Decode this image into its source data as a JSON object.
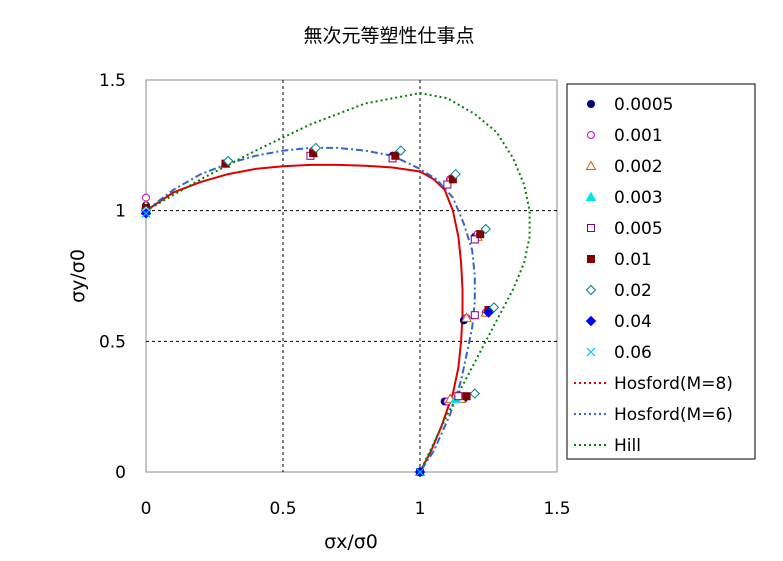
{
  "chart_data": {
    "type": "scatter",
    "title": "無次元等塑性仕事点",
    "xlabel": "σx/σ0",
    "ylabel": "σy/σ0",
    "xlim": [
      0,
      1.5
    ],
    "ylim": [
      0,
      1.5
    ],
    "xticks": [
      "0",
      "0.5",
      "1",
      "1.5"
    ],
    "yticks": [
      "0",
      "0.5",
      "1",
      "1.5"
    ],
    "grid": "dashed at 0.5 and 1.0",
    "legend_position": "right",
    "series": [
      {
        "name": "0.0005",
        "marker": "circle-filled",
        "color": "#000080",
        "x": [
          0,
          0.29,
          0.61,
          0.9,
          1.11,
          1.2,
          1.16,
          1.24,
          1.09,
          1.16,
          1.0
        ],
        "y": [
          1.02,
          1.18,
          1.22,
          1.21,
          1.12,
          0.9,
          0.58,
          0.61,
          0.27,
          0.28,
          0.0
        ]
      },
      {
        "name": "0.001",
        "marker": "circle-open",
        "color": "#cc00cc",
        "x": [
          0,
          0.29,
          0.61,
          0.91,
          1.11,
          1.21,
          1.17,
          1.24,
          1.1,
          1.16,
          1.0
        ],
        "y": [
          1.05,
          1.18,
          1.23,
          1.21,
          1.12,
          0.91,
          0.59,
          0.61,
          0.27,
          0.29,
          0.0
        ]
      },
      {
        "name": "0.002",
        "marker": "triangle-open",
        "color": "#cc6600",
        "x": [
          0,
          0.29,
          0.61,
          0.91,
          1.11,
          1.21,
          1.17,
          1.24,
          1.11,
          1.15,
          1.0
        ],
        "y": [
          1.02,
          1.18,
          1.22,
          1.21,
          1.12,
          0.9,
          0.59,
          0.61,
          0.28,
          0.28,
          0.0
        ]
      },
      {
        "name": "0.003",
        "marker": "triangle-filled",
        "color": "#00e5e5",
        "x": [
          0,
          1.13,
          1.0
        ],
        "y": [
          1.0,
          0.28,
          0.0
        ]
      },
      {
        "name": "0.005",
        "marker": "square-open",
        "color": "#800080",
        "x": [
          0,
          0.6,
          0.9,
          1.1,
          1.2,
          1.2,
          1.14,
          1.0
        ],
        "y": [
          1.01,
          1.21,
          1.2,
          1.1,
          0.89,
          0.6,
          0.29,
          0.0
        ]
      },
      {
        "name": "0.01",
        "marker": "square-filled",
        "color": "#800000",
        "x": [
          0,
          0.29,
          0.61,
          0.91,
          1.12,
          1.22,
          1.25,
          1.17,
          1.0
        ],
        "y": [
          1.01,
          1.18,
          1.22,
          1.21,
          1.12,
          0.91,
          0.62,
          0.29,
          0.0
        ]
      },
      {
        "name": "0.02",
        "marker": "diamond-open",
        "color": "#008080",
        "x": [
          0,
          0.3,
          0.62,
          0.93,
          1.13,
          1.24,
          1.27,
          1.2,
          1.0
        ],
        "y": [
          1.0,
          1.19,
          1.24,
          1.23,
          1.14,
          0.93,
          0.63,
          0.3,
          0.0
        ]
      },
      {
        "name": "0.04",
        "marker": "diamond-filled",
        "color": "#0000ff",
        "x": [
          0,
          1.25,
          1.0
        ],
        "y": [
          0.99,
          0.61,
          0.0
        ]
      },
      {
        "name": "0.06",
        "marker": "cross",
        "color": "#00bfff",
        "x": [
          0,
          1.0
        ],
        "y": [
          0.99,
          0.0
        ]
      },
      {
        "name": "Hosford(M=8)",
        "type": "curve",
        "style": "solid",
        "color": "#dd0000",
        "x": [
          0,
          0.1,
          0.2,
          0.3,
          0.4,
          0.5,
          0.6,
          0.7,
          0.8,
          0.9,
          1.0,
          1.05,
          1.09,
          1.12,
          1.14,
          1.15,
          1.155,
          1.155,
          1.15,
          1.14,
          1.12,
          1.08,
          1.04,
          1.0
        ],
        "y": [
          1.0,
          1.07,
          1.11,
          1.14,
          1.16,
          1.17,
          1.175,
          1.175,
          1.172,
          1.165,
          1.15,
          1.12,
          1.08,
          1.0,
          0.9,
          0.8,
          0.7,
          0.6,
          0.5,
          0.4,
          0.3,
          0.18,
          0.08,
          0.0
        ]
      },
      {
        "name": "Hosford(M=6)",
        "type": "curve",
        "style": "dash-dot",
        "color": "#3366cc",
        "x": [
          0,
          0.1,
          0.2,
          0.3,
          0.4,
          0.5,
          0.6,
          0.7,
          0.8,
          0.9,
          1.0,
          1.06,
          1.12,
          1.16,
          1.19,
          1.2,
          1.2,
          1.19,
          1.17,
          1.15,
          1.11,
          1.05,
          1.0
        ],
        "y": [
          1.0,
          1.08,
          1.14,
          1.18,
          1.21,
          1.23,
          1.24,
          1.24,
          1.23,
          1.21,
          1.16,
          1.12,
          1.05,
          0.95,
          0.85,
          0.75,
          0.65,
          0.55,
          0.45,
          0.35,
          0.22,
          0.08,
          0.0
        ]
      },
      {
        "name": "Hill",
        "type": "curve",
        "style": "dotted",
        "color": "#008000",
        "x": [
          0,
          0.2,
          0.4,
          0.6,
          0.8,
          0.9,
          1.0,
          1.1,
          1.2,
          1.28,
          1.34,
          1.38,
          1.4,
          1.4,
          1.38,
          1.34,
          1.28,
          1.2,
          1.1,
          1.0
        ],
        "y": [
          1.0,
          1.12,
          1.23,
          1.33,
          1.41,
          1.43,
          1.45,
          1.43,
          1.37,
          1.3,
          1.2,
          1.1,
          1.0,
          0.9,
          0.8,
          0.7,
          0.58,
          0.42,
          0.22,
          0.0
        ]
      }
    ]
  }
}
